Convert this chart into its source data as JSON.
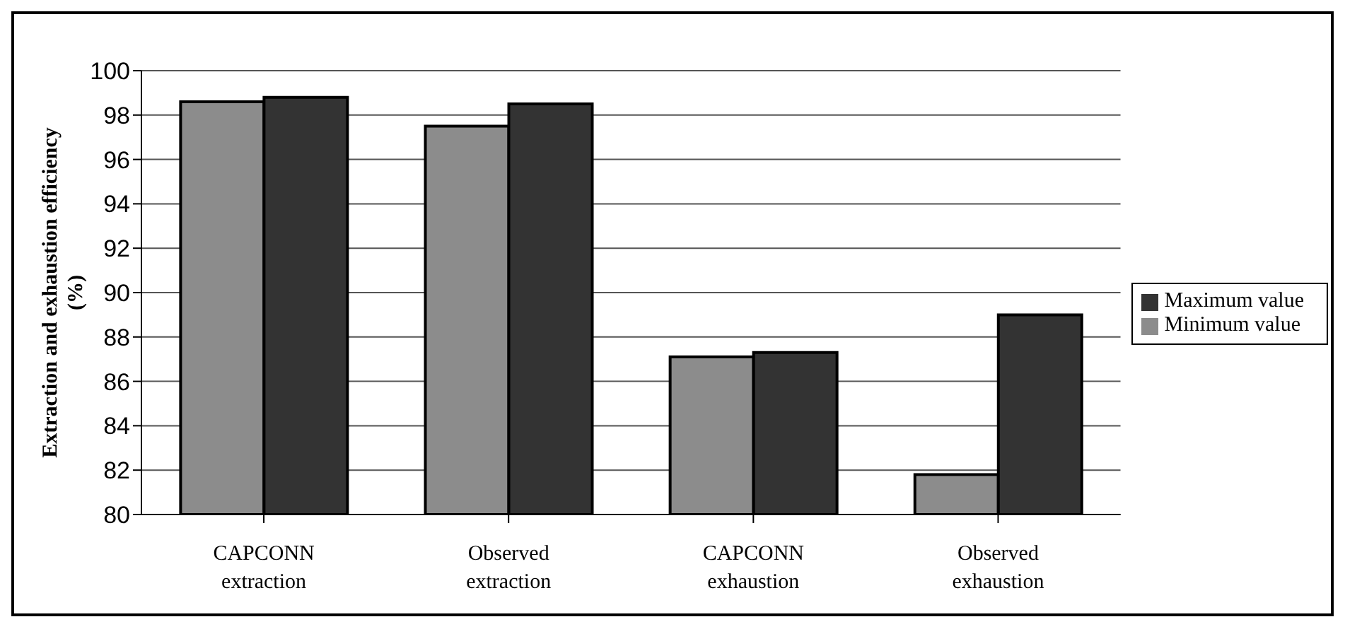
{
  "chart_data": {
    "type": "bar",
    "ylabel": "Extraction and exhaustion efficiency (%)",
    "categories": [
      "CAPCONN extraction",
      "Observed extraction",
      "CAPCONN exhaustion",
      "Observed exhaustion"
    ],
    "series": [
      {
        "name": "Minimum value",
        "color": "#8c8c8c",
        "values": [
          98.6,
          97.5,
          87.1,
          81.8
        ]
      },
      {
        "name": "Maximum value",
        "color": "#333333",
        "values": [
          98.8,
          98.5,
          87.3,
          89.0
        ]
      }
    ],
    "ylim": [
      80,
      100
    ],
    "yticks": [
      80,
      82,
      84,
      86,
      88,
      90,
      92,
      94,
      96,
      98,
      100
    ],
    "grid": "y",
    "legend": "right"
  }
}
